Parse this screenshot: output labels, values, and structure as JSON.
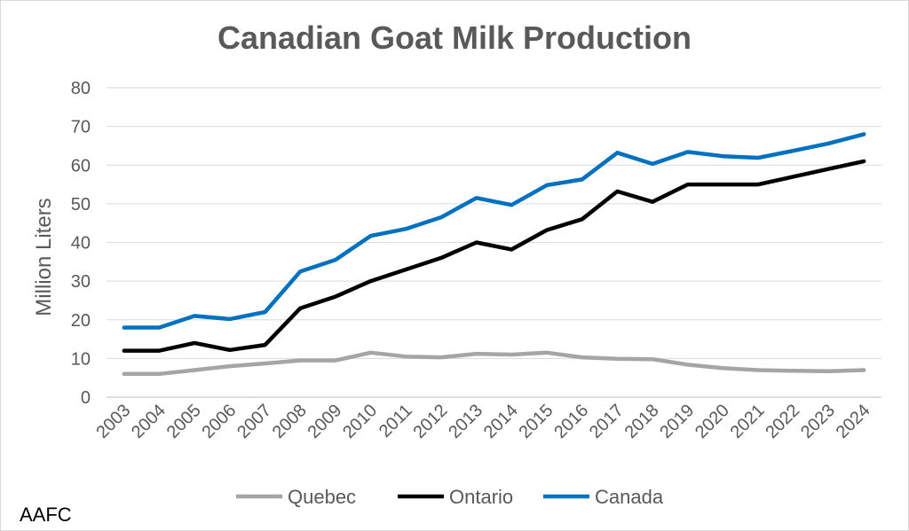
{
  "source_label": "AAFC",
  "chart_data": {
    "type": "line",
    "title": "Canadian Goat Milk Production",
    "xlabel": "",
    "ylabel": "Million Liters",
    "ylim": [
      0,
      80
    ],
    "yticks": [
      0,
      10,
      20,
      30,
      40,
      50,
      60,
      70,
      80
    ],
    "grid": true,
    "legend_position": "bottom",
    "x": [
      "2003",
      "2004",
      "2005",
      "2006",
      "2007",
      "2008",
      "2009",
      "2010",
      "2011",
      "2012",
      "2013",
      "2014",
      "2015",
      "2016",
      "2017",
      "2018",
      "2019",
      "2020",
      "2021",
      "2022",
      "2023",
      "2024"
    ],
    "series": [
      {
        "name": "Quebec",
        "color": "#a5a5a5",
        "values": [
          6,
          6,
          7,
          8,
          8.7,
          9.5,
          9.5,
          11.5,
          10.5,
          10.3,
          11.2,
          11,
          11.5,
          10.3,
          9.9,
          9.8,
          8.4,
          7.5,
          7,
          6.8,
          6.7,
          7
        ]
      },
      {
        "name": "Ontario",
        "color": "#000000",
        "values": [
          12,
          12,
          14,
          12.2,
          13.5,
          23,
          26,
          30,
          33,
          36,
          40,
          38.2,
          43.2,
          46,
          53.2,
          50.5,
          55,
          55,
          55,
          57,
          59,
          61
        ]
      },
      {
        "name": "Canada",
        "color": "#0070c0",
        "values": [
          18,
          18,
          21,
          20.2,
          22,
          32.5,
          35.5,
          41.7,
          43.5,
          46.5,
          51.5,
          49.7,
          54.8,
          56.3,
          63.2,
          60.3,
          63.4,
          62.3,
          61.9,
          63.7,
          65.6,
          68
        ]
      }
    ]
  }
}
